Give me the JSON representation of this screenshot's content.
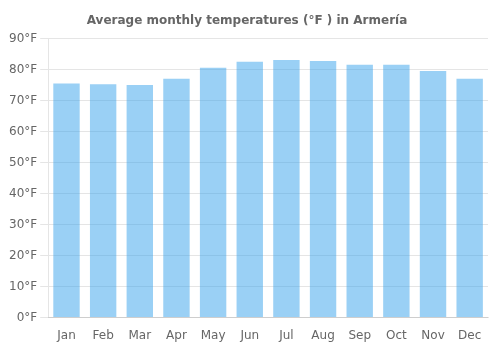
{
  "chart_data": {
    "type": "bar",
    "title": "Average monthly temperatures (°F ) in Armería",
    "categories": [
      "Jan",
      "Feb",
      "Mar",
      "Apr",
      "May",
      "Jun",
      "Jul",
      "Aug",
      "Sep",
      "Oct",
      "Nov",
      "Dec"
    ],
    "values": [
      75.5,
      75.2,
      75.0,
      77.0,
      80.5,
      82.5,
      83.0,
      82.7,
      81.5,
      81.5,
      79.5,
      77.0
    ],
    "ylim": [
      0,
      90
    ],
    "yticks": [
      {
        "value": 0,
        "label": "0°F"
      },
      {
        "value": 10,
        "label": "10°F"
      },
      {
        "value": 20,
        "label": "20°F"
      },
      {
        "value": 30,
        "label": "30°F"
      },
      {
        "value": 40,
        "label": "40°F"
      },
      {
        "value": 50,
        "label": "50°F"
      },
      {
        "value": 60,
        "label": "60°F"
      },
      {
        "value": 70,
        "label": "70°F"
      },
      {
        "value": 80,
        "label": "80°F"
      },
      {
        "value": 90,
        "label": "90°F"
      }
    ],
    "grid": true
  }
}
